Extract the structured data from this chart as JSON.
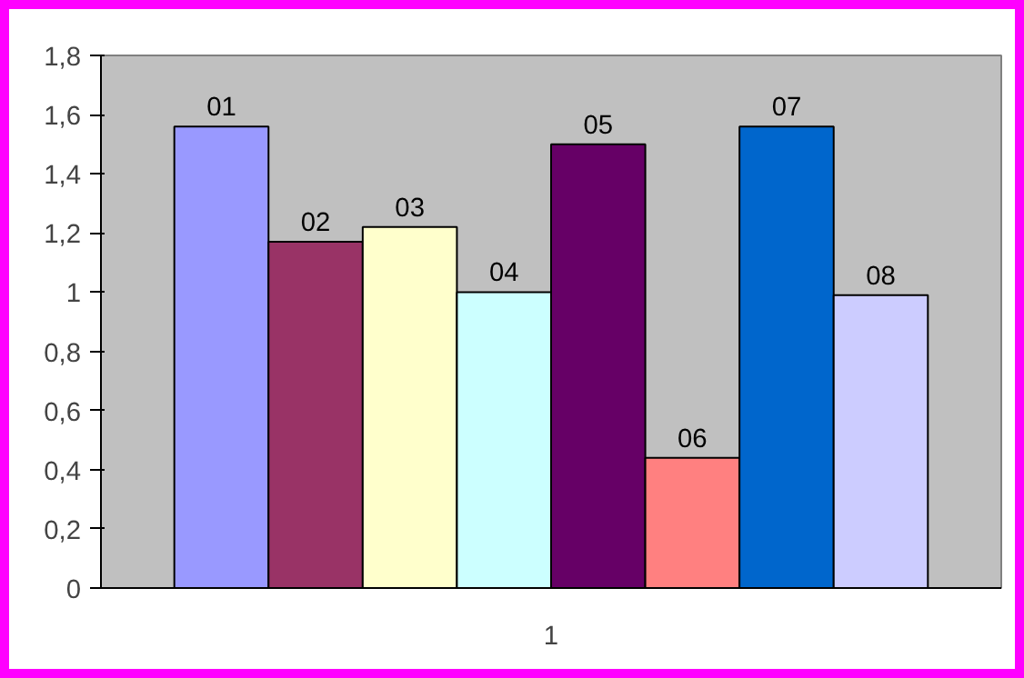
{
  "chart_data": {
    "type": "bar",
    "categories": [
      "1"
    ],
    "series": [
      {
        "name": "01",
        "color": "#9999ff",
        "values": [
          1.56
        ]
      },
      {
        "name": "02",
        "color": "#993366",
        "values": [
          1.17
        ]
      },
      {
        "name": "03",
        "color": "#ffffcc",
        "values": [
          1.22
        ]
      },
      {
        "name": "04",
        "color": "#ccffff",
        "values": [
          1.0
        ]
      },
      {
        "name": "05",
        "color": "#660066",
        "values": [
          1.5
        ]
      },
      {
        "name": "06",
        "color": "#ff8080",
        "values": [
          0.44
        ]
      },
      {
        "name": "07",
        "color": "#0066cc",
        "values": [
          1.56
        ]
      },
      {
        "name": "08",
        "color": "#ccccff",
        "values": [
          0.99
        ]
      }
    ],
    "ylim": [
      0,
      1.8
    ],
    "yticks": [
      0,
      {
        "value": 0.2,
        "label": "0,2"
      },
      {
        "value": 0.4,
        "label": "0,4"
      },
      {
        "value": 0.6,
        "label": "0,6"
      },
      {
        "value": 0.8,
        "label": "0,8"
      },
      1,
      {
        "value": 1.2,
        "label": "1,2"
      },
      {
        "value": 1.4,
        "label": "1,4"
      },
      {
        "value": 1.6,
        "label": "1,6"
      },
      {
        "value": 1.8,
        "label": "1,8"
      }
    ],
    "grid": false
  }
}
